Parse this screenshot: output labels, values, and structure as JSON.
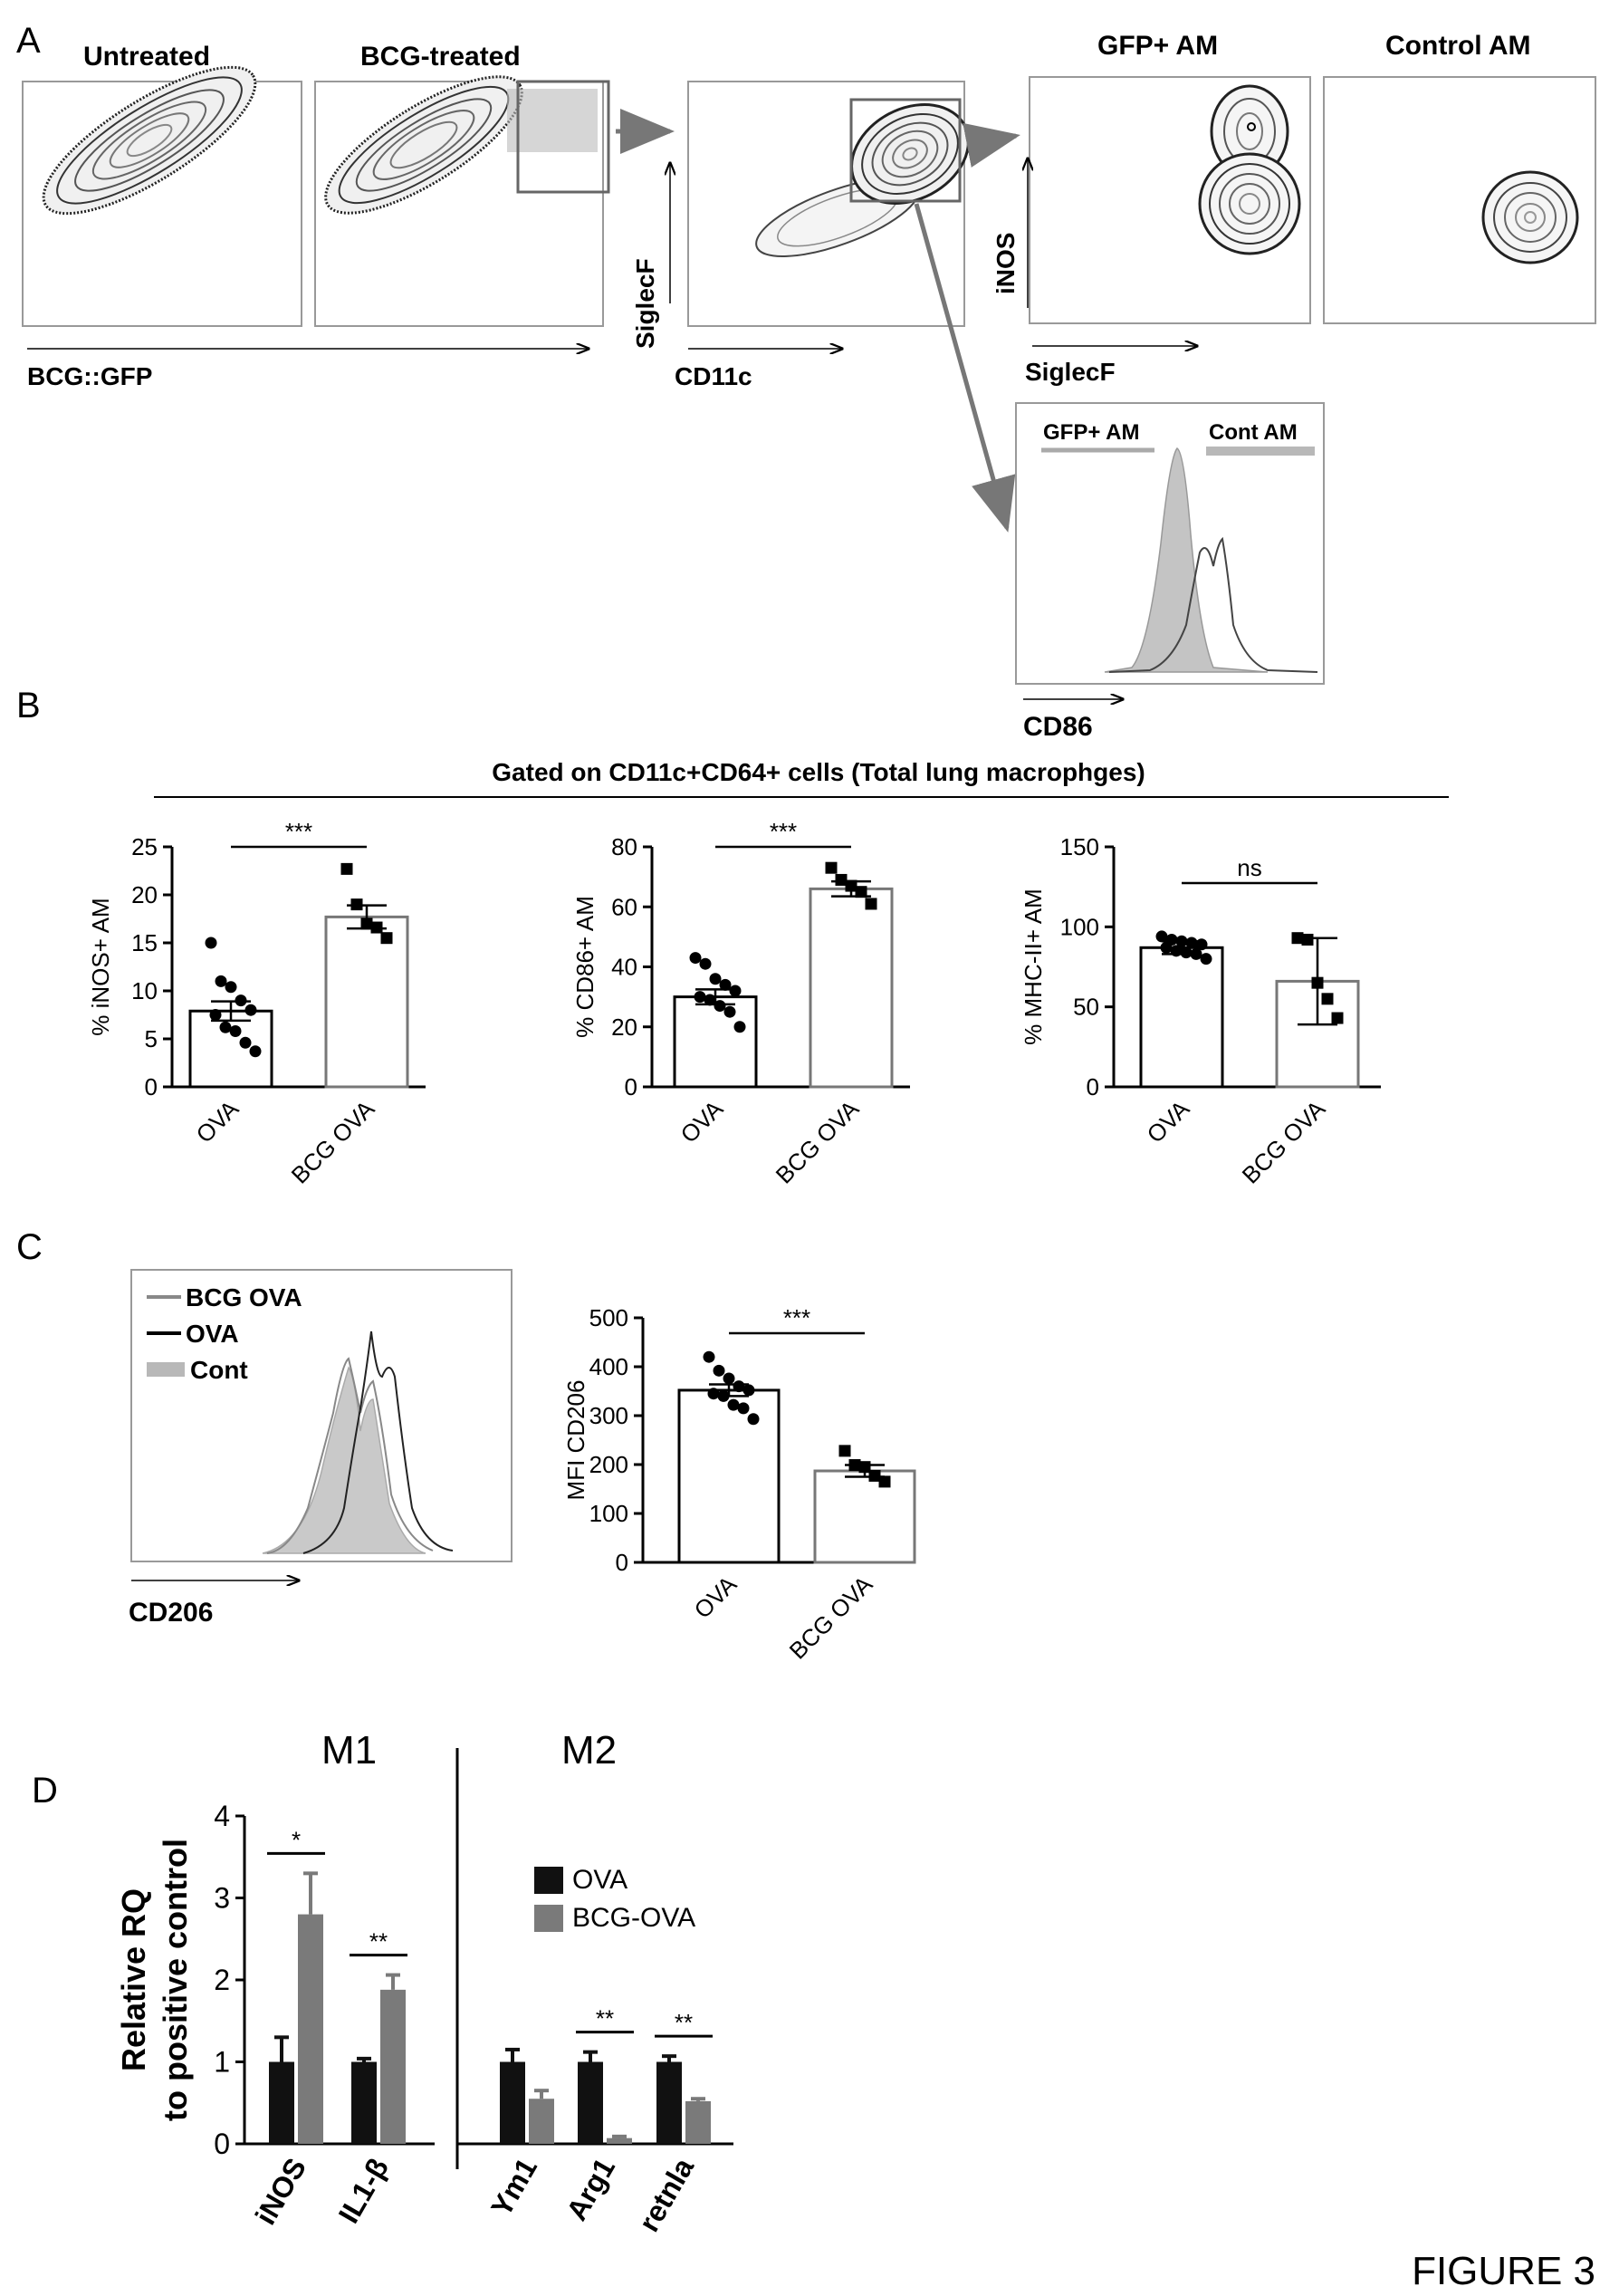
{
  "figure_label": "FIGURE 3",
  "panel_a": {
    "letter": "A",
    "untreated_title": "Untreated",
    "bcg_title": "BCG-treated",
    "bcg_gfp_axis": "BCG::GFP",
    "siglecf_axis": "SiglecF",
    "cd11c_axis": "CD11c",
    "gfp_am_title": "GFP+ AM",
    "control_am_title": "Control AM",
    "inos_axis": "iNOS",
    "siglecf_axis2": "SiglecF",
    "hist_gfp_label": "GFP+ AM",
    "hist_cont_label": "Cont AM",
    "cd86_axis": "CD86"
  },
  "panel_b": {
    "letter": "B",
    "header": "Gated on CD11c+CD64+ cells (Total lung macrophges)"
  },
  "panel_c": {
    "letter": "C",
    "legend": [
      "BCG OVA",
      "OVA",
      "Cont"
    ],
    "cd206_axis": "CD206"
  },
  "panel_d": {
    "letter": "D",
    "m1_label": "M1",
    "m2_label": "M2"
  },
  "chart_data": [
    {
      "type": "bar",
      "panel": "B1",
      "categories": [
        "OVA",
        "BCG OVA"
      ],
      "values": [
        7.9,
        17.7
      ],
      "sem": [
        1.0,
        1.2
      ],
      "ylabel": "% iNOS+ AM",
      "ylim": [
        0,
        25
      ],
      "yticks": [
        0,
        5,
        10,
        15,
        20,
        25
      ],
      "significance": "***",
      "points": [
        [
          15.0,
          11.0,
          10.4,
          9.0,
          8.0,
          7.5,
          6.2,
          5.8,
          4.6,
          3.7
        ],
        [
          22.7,
          19.0,
          17.0,
          16.6,
          15.5
        ]
      ]
    },
    {
      "type": "bar",
      "panel": "B2",
      "categories": [
        "OVA",
        "BCG OVA"
      ],
      "values": [
        30,
        66
      ],
      "sem": [
        2.5,
        2.5
      ],
      "ylabel": "% CD86+ AM",
      "ylim": [
        0,
        80
      ],
      "yticks": [
        0,
        20,
        40,
        60,
        80
      ],
      "significance": "***",
      "points": [
        [
          43,
          41,
          36,
          34,
          32,
          30,
          29,
          27,
          25,
          20
        ],
        [
          73,
          69,
          67,
          65,
          61
        ]
      ]
    },
    {
      "type": "bar",
      "panel": "B3",
      "categories": [
        "OVA",
        "BCG OVA"
      ],
      "values": [
        87,
        66
      ],
      "sem": [
        4,
        27
      ],
      "ylabel": "% MHC-II+ AM",
      "ylim": [
        0,
        150
      ],
      "yticks": [
        0,
        50,
        100,
        150
      ],
      "significance": "ns",
      "points": [
        [
          94,
          92,
          91,
          90,
          89,
          87,
          85,
          84,
          83,
          80
        ],
        [
          93,
          92,
          65,
          55,
          43
        ]
      ]
    },
    {
      "type": "bar",
      "panel": "C",
      "categories": [
        "OVA",
        "BCG OVA"
      ],
      "values": [
        352,
        187
      ],
      "sem": [
        12,
        12
      ],
      "ylabel": "MFI CD206",
      "ylim": [
        0,
        500
      ],
      "yticks": [
        0,
        100,
        200,
        300,
        400,
        500
      ],
      "significance": "***",
      "points": [
        [
          420,
          392,
          376,
          360,
          352,
          345,
          340,
          322,
          315,
          293
        ],
        [
          228,
          199,
          195,
          177,
          165
        ]
      ]
    },
    {
      "type": "bar",
      "panel": "D",
      "categories": [
        "iNOS",
        "IL1-β",
        "Ym1",
        "Arg1",
        "retnla"
      ],
      "ylabel": "Relative RQ\nto positive control",
      "ylim": [
        0,
        4
      ],
      "yticks": [
        0,
        1,
        2,
        3,
        4
      ],
      "series": [
        {
          "name": "OVA",
          "values": [
            1.0,
            1.0,
            1.0,
            1.0,
            1.0
          ],
          "err": [
            0.3,
            0.04,
            0.15,
            0.12,
            0.07
          ],
          "color": "#111111"
        },
        {
          "name": "BCG-OVA",
          "values": [
            2.8,
            1.88,
            0.55,
            0.07,
            0.52
          ],
          "err": [
            0.5,
            0.18,
            0.1,
            0.02,
            0.03
          ],
          "color": "#7a7a7a"
        }
      ],
      "significance": [
        "*",
        "**",
        "",
        "**",
        "**"
      ]
    }
  ]
}
